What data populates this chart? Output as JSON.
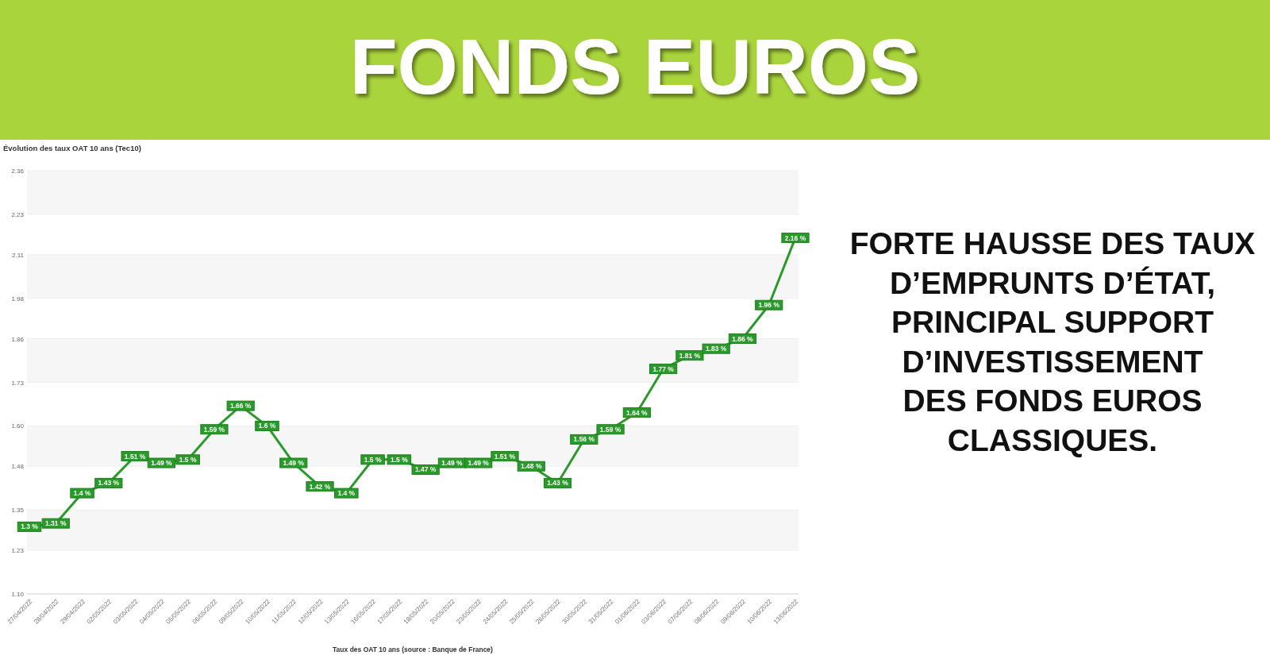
{
  "chart_data": {
    "type": "line",
    "title": "FONDS EUROS",
    "subtitle": "Évolution des taux OAT 10 ans (Tec10)",
    "xlabel": "Taux des OAT 10 ans (source : Banque de France)",
    "annotations": [
      "FORTE HAUSSE DES TAUX\nD’EMPRUNTS D’ÉTAT,\nPRINCIPAL SUPPORT\nD’INVESTISSEMENT\nDES FONDS EUROS\nCLASSIQUES."
    ],
    "categories": [
      "27/04/2022",
      "28/04/2022",
      "29/04/2022",
      "02/05/2022",
      "03/05/2022",
      "04/05/2022",
      "05/05/2022",
      "06/05/2022",
      "09/05/2022",
      "10/05/2022",
      "11/05/2022",
      "12/05/2022",
      "13/05/2022",
      "16/05/2022",
      "17/05/2022",
      "18/05/2022",
      "20/05/2022",
      "23/05/2022",
      "24/05/2022",
      "25/05/2022",
      "26/05/2022",
      "30/05/2022",
      "31/05/2022",
      "01/06/2022",
      "03/06/2022",
      "07/06/2022",
      "08/06/2022",
      "09/06/2022",
      "10/06/2022",
      "13/06/2022"
    ],
    "series": [
      {
        "color": "#2a9a2a",
        "values": [
          1.3,
          1.31,
          1.4,
          1.43,
          1.51,
          1.49,
          1.5,
          1.59,
          1.66,
          1.6,
          1.49,
          1.42,
          1.4,
          1.5,
          1.5,
          1.47,
          1.49,
          1.49,
          1.51,
          1.48,
          1.43,
          1.56,
          1.59,
          1.64,
          1.77,
          1.81,
          1.83,
          1.86,
          1.96,
          2.16
        ],
        "value_labels": [
          "1.3 %",
          "1.31 %",
          "1.4 %",
          "1.43 %",
          "1.51 %",
          "1.49 %",
          "1.5 %",
          "1.59 %",
          "1.66 %",
          "1.6 %",
          "1.49 %",
          "1.42 %",
          "1.4 %",
          "1.5 %",
          "1.5 %",
          "1.47 %",
          "1.49 %",
          "1.49 %",
          "1.51 %",
          "1.48 %",
          "1.43 %",
          "1.56 %",
          "1.59 %",
          "1.64 %",
          "1.77 %",
          "1.81 %",
          "1.83 %",
          "1.86 %",
          "1.96 %",
          "2.16 %"
        ]
      }
    ],
    "ylim": [
      1.1,
      2.36
    ],
    "yticks": [
      {
        "value": 1.1,
        "label": "1.10"
      },
      {
        "value": 1.23,
        "label": "1.23"
      },
      {
        "value": 1.35,
        "label": "1.35"
      },
      {
        "value": 1.48,
        "label": "1.48"
      },
      {
        "value": 1.6,
        "label": "1.60"
      },
      {
        "value": 1.73,
        "label": "1.73"
      },
      {
        "value": 1.86,
        "label": "1.86"
      },
      {
        "value": 1.98,
        "label": "1.98"
      },
      {
        "value": 2.11,
        "label": "2.11"
      },
      {
        "value": 2.23,
        "label": "2.23"
      },
      {
        "value": 2.36,
        "label": "2.36"
      }
    ],
    "grid": "y",
    "marker": "square"
  }
}
